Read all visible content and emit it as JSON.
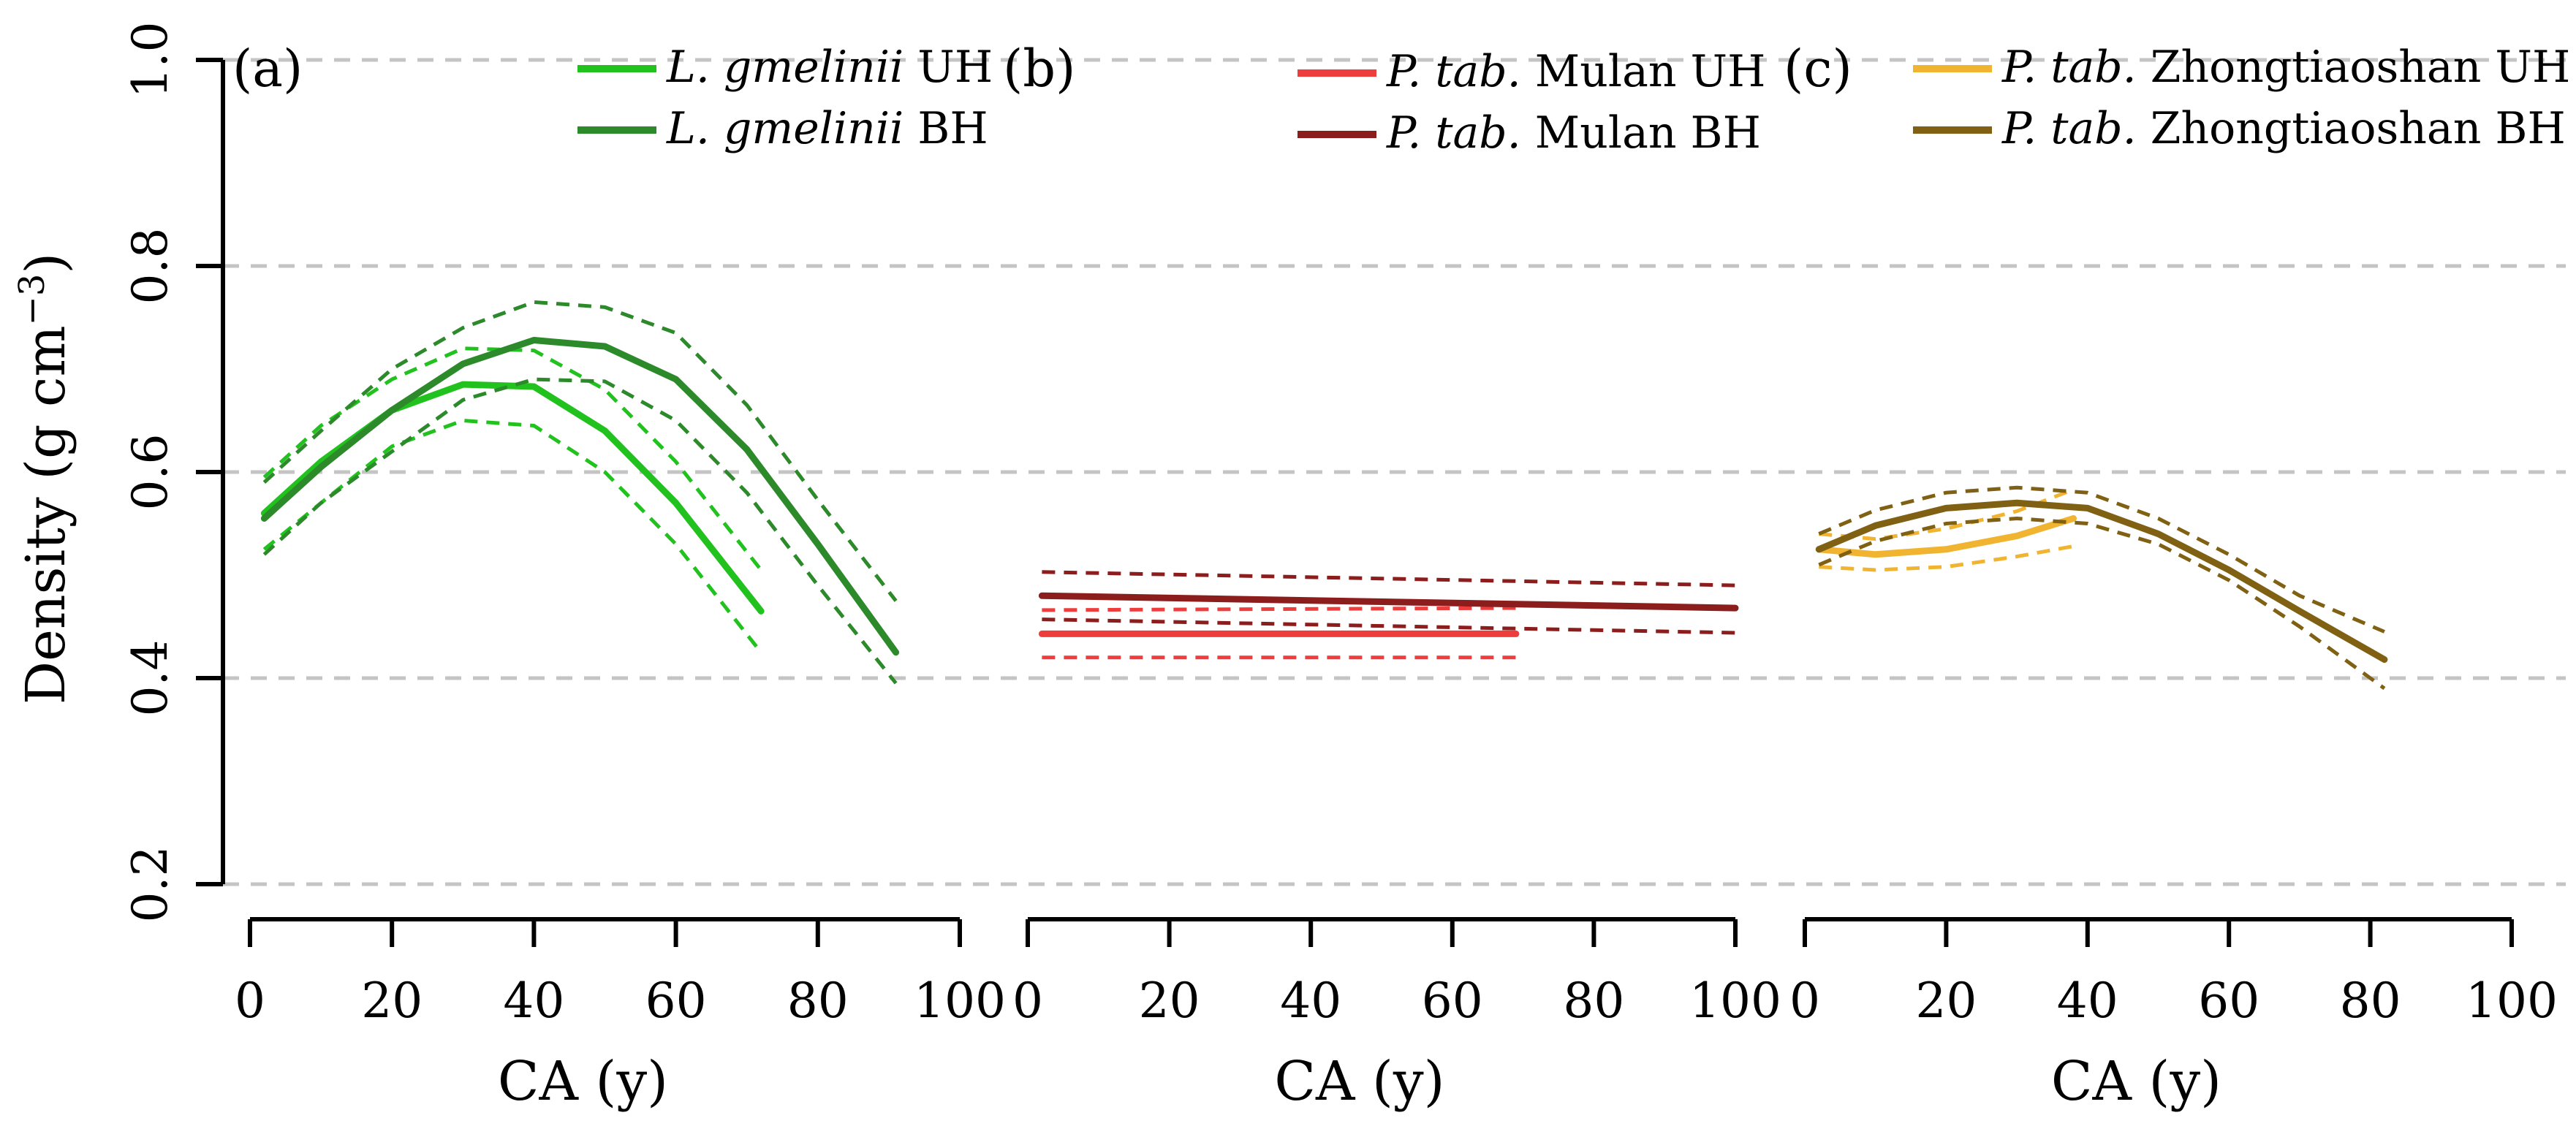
{
  "figure": {
    "ylabel": "Density (g cm",
    "ylabel_exp": "−3",
    "ylabel_close": ")"
  },
  "chart_data": [
    {
      "type": "line",
      "panel_label": "(a)",
      "xlabel": "CA (y)",
      "ylabel": "Density (g cm−3)",
      "xlim": [
        0,
        100
      ],
      "ylim": [
        0.2,
        1.0
      ],
      "x_ticks": [
        0,
        20,
        40,
        60,
        80,
        100
      ],
      "y_ticks": [
        0.2,
        0.4,
        0.6,
        0.8,
        1.0
      ],
      "grid": "horizontal dashed",
      "legend": "top",
      "series": [
        {
          "name_italic": "L. gmelinii",
          "name_rest": "UH",
          "color": "#22c21e",
          "x": [
            2,
            10,
            20,
            30,
            40,
            50,
            60,
            72
          ],
          "values": [
            0.56,
            0.61,
            0.66,
            0.685,
            0.683,
            0.64,
            0.57,
            0.465
          ],
          "lower": [
            0.525,
            0.57,
            0.625,
            0.65,
            0.645,
            0.6,
            0.53,
            0.425
          ],
          "upper": [
            0.595,
            0.645,
            0.69,
            0.72,
            0.718,
            0.68,
            0.61,
            0.505
          ]
        },
        {
          "name_italic": "L. gmelinii",
          "name_rest": "BH",
          "color": "#2d8a2b",
          "x": [
            2,
            10,
            20,
            30,
            40,
            50,
            60,
            70,
            80,
            91
          ],
          "values": [
            0.555,
            0.605,
            0.66,
            0.705,
            0.728,
            0.722,
            0.69,
            0.622,
            0.53,
            0.425
          ],
          "lower": [
            0.52,
            0.57,
            0.62,
            0.67,
            0.69,
            0.688,
            0.65,
            0.58,
            0.49,
            0.395
          ],
          "upper": [
            0.59,
            0.64,
            0.7,
            0.74,
            0.765,
            0.76,
            0.735,
            0.665,
            0.573,
            0.475
          ]
        }
      ]
    },
    {
      "type": "line",
      "panel_label": "(b)",
      "xlabel": "CA (y)",
      "ylabel": "",
      "xlim": [
        0,
        100
      ],
      "ylim": [
        0.2,
        1.0
      ],
      "x_ticks": [
        0,
        20,
        40,
        60,
        80,
        100
      ],
      "grid": "horizontal dashed",
      "legend": "top",
      "series": [
        {
          "name_italic": "P. tab.",
          "name_rest": "Mulan UH",
          "color": "#ee3d3d",
          "x": [
            2,
            69
          ],
          "values": [
            0.443,
            0.443
          ],
          "lower": [
            0.42,
            0.42
          ],
          "upper": [
            0.466,
            0.468
          ]
        },
        {
          "name_italic": "P. tab.",
          "name_rest": "Mulan BH",
          "color": "#8b1d1d",
          "x": [
            2,
            100
          ],
          "values": [
            0.48,
            0.468
          ],
          "lower": [
            0.457,
            0.444
          ],
          "upper": [
            0.503,
            0.49
          ]
        }
      ]
    },
    {
      "type": "line",
      "panel_label": "(c)",
      "xlabel": "CA (y)",
      "ylabel": "",
      "xlim": [
        0,
        100
      ],
      "ylim": [
        0.2,
        1.0
      ],
      "x_ticks": [
        0,
        20,
        40,
        60,
        80,
        100
      ],
      "grid": "horizontal dashed",
      "legend": "top",
      "series": [
        {
          "name_italic": "P. tab.",
          "name_rest": "Zhongtiaoshan UH",
          "color": "#f0b431",
          "x": [
            2,
            10,
            20,
            30,
            38
          ],
          "values": [
            0.525,
            0.52,
            0.525,
            0.538,
            0.555
          ],
          "lower": [
            0.508,
            0.505,
            0.508,
            0.518,
            0.528
          ],
          "upper": [
            0.54,
            0.535,
            0.545,
            0.562,
            0.583
          ]
        },
        {
          "name_italic": "P. tab.",
          "name_rest": "Zhongtiaoshan BH",
          "color": "#806012",
          "x": [
            2,
            10,
            20,
            30,
            40,
            50,
            60,
            70,
            82
          ],
          "values": [
            0.525,
            0.548,
            0.565,
            0.57,
            0.565,
            0.54,
            0.505,
            0.465,
            0.418
          ],
          "lower": [
            0.51,
            0.533,
            0.55,
            0.555,
            0.55,
            0.53,
            0.495,
            0.45,
            0.39
          ],
          "upper": [
            0.54,
            0.563,
            0.58,
            0.585,
            0.58,
            0.555,
            0.52,
            0.48,
            0.445
          ]
        }
      ]
    }
  ]
}
